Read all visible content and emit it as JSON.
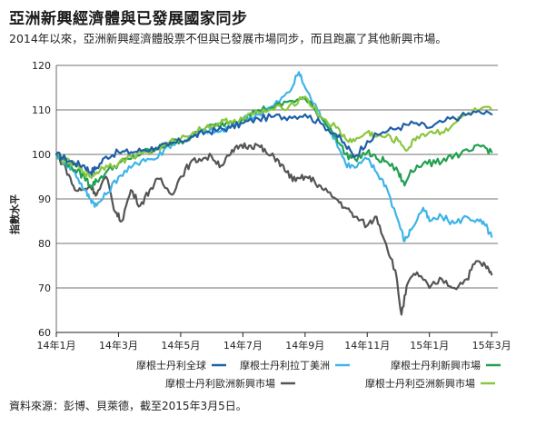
{
  "header": {
    "title": "亞洲新興經濟體與已發展國家同步",
    "subtitle": "2014年以來，亞洲新興經濟體股票不但與已發展市場同步，而且跑贏了其他新興市場。"
  },
  "footer": {
    "source": "資料來源：彭博、貝萊德，截至2015年3月5日。"
  },
  "chart_data": {
    "type": "line",
    "xlabel": "",
    "ylabel": "指數水平",
    "ylim": [
      60,
      120
    ],
    "yticks": [
      60,
      70,
      80,
      90,
      100,
      110,
      120
    ],
    "xticks": [
      "14年1月",
      "14年3月",
      "14年5月",
      "14年7月",
      "14年9月",
      "14年11月",
      "15年1月",
      "15年3月"
    ],
    "xticks_pos": [
      0,
      2,
      4,
      6,
      8,
      10,
      12,
      14
    ],
    "xlim": [
      0,
      14.2
    ],
    "grid": "horizontal",
    "legend_position": "bottom",
    "series": [
      {
        "name": "摩根士丹利全球",
        "color": "#1f5fa8",
        "points": [
          [
            0,
            100
          ],
          [
            0.3,
            99
          ],
          [
            0.6,
            98
          ],
          [
            0.9,
            97.5
          ],
          [
            1.1,
            96
          ],
          [
            1.3,
            97
          ],
          [
            1.6,
            99.5
          ],
          [
            2,
            100.5
          ],
          [
            2.4,
            100.5
          ],
          [
            2.8,
            101
          ],
          [
            3.2,
            101.5
          ],
          [
            3.6,
            102
          ],
          [
            4,
            103
          ],
          [
            4.4,
            104
          ],
          [
            4.8,
            105
          ],
          [
            5.2,
            105.5
          ],
          [
            5.6,
            106
          ],
          [
            6,
            107
          ],
          [
            6.5,
            108
          ],
          [
            7,
            108.5
          ],
          [
            7.5,
            108.5
          ],
          [
            8,
            109
          ],
          [
            8.5,
            107
          ],
          [
            9,
            104.5
          ],
          [
            9.3,
            102
          ],
          [
            9.6,
            99.5
          ],
          [
            10,
            103
          ],
          [
            10.5,
            105
          ],
          [
            11,
            106
          ],
          [
            11.5,
            107
          ],
          [
            12,
            106
          ],
          [
            12.5,
            107.5
          ],
          [
            13,
            108.5
          ],
          [
            13.5,
            109.5
          ],
          [
            14,
            109
          ]
        ]
      },
      {
        "name": "摩根士丹利拉丁美洲",
        "color": "#3fb4e8",
        "points": [
          [
            0,
            100
          ],
          [
            0.3,
            98
          ],
          [
            0.6,
            96
          ],
          [
            0.9,
            92
          ],
          [
            1.1,
            90
          ],
          [
            1.3,
            88.5
          ],
          [
            1.6,
            91
          ],
          [
            2,
            95
          ],
          [
            2.4,
            97
          ],
          [
            2.8,
            99
          ],
          [
            3.2,
            99
          ],
          [
            3.6,
            102
          ],
          [
            4,
            103
          ],
          [
            4.4,
            104
          ],
          [
            4.8,
            105.5
          ],
          [
            5.2,
            105
          ],
          [
            5.6,
            106
          ],
          [
            6,
            108
          ],
          [
            6.5,
            109
          ],
          [
            7,
            111
          ],
          [
            7.5,
            114
          ],
          [
            7.8,
            118.5
          ],
          [
            8,
            115
          ],
          [
            8.4,
            110
          ],
          [
            8.7,
            107
          ],
          [
            9,
            103
          ],
          [
            9.3,
            98
          ],
          [
            9.6,
            97
          ],
          [
            10,
            99
          ],
          [
            10.3,
            96
          ],
          [
            10.6,
            93
          ],
          [
            11,
            85
          ],
          [
            11.2,
            80.5
          ],
          [
            11.4,
            83
          ],
          [
            11.8,
            88
          ],
          [
            12,
            85
          ],
          [
            12.4,
            86
          ],
          [
            12.8,
            84.5
          ],
          [
            13.2,
            86
          ],
          [
            13.6,
            85
          ],
          [
            13.8,
            84
          ],
          [
            14,
            81.5
          ]
        ]
      },
      {
        "name": "摩根士丹利新興市場",
        "color": "#21a050",
        "points": [
          [
            0,
            100
          ],
          [
            0.3,
            98.5
          ],
          [
            0.6,
            96.5
          ],
          [
            0.9,
            95
          ],
          [
            1.1,
            93
          ],
          [
            1.3,
            94
          ],
          [
            1.6,
            96
          ],
          [
            2,
            98
          ],
          [
            2.4,
            99
          ],
          [
            2.8,
            100.5
          ],
          [
            3.2,
            101
          ],
          [
            3.6,
            102.5
          ],
          [
            4,
            103
          ],
          [
            4.4,
            104
          ],
          [
            4.8,
            106
          ],
          [
            5.2,
            106.5
          ],
          [
            5.6,
            107.5
          ],
          [
            6,
            108
          ],
          [
            6.5,
            110
          ],
          [
            7,
            110.5
          ],
          [
            7.5,
            112
          ],
          [
            8,
            112.5
          ],
          [
            8.5,
            108.5
          ],
          [
            9,
            104
          ],
          [
            9.3,
            100
          ],
          [
            9.6,
            99
          ],
          [
            10,
            100.5
          ],
          [
            10.3,
            99
          ],
          [
            10.6,
            98.5
          ],
          [
            11,
            96
          ],
          [
            11.2,
            93
          ],
          [
            11.4,
            96.5
          ],
          [
            11.8,
            98
          ],
          [
            12.2,
            98
          ],
          [
            12.6,
            99.5
          ],
          [
            13,
            100
          ],
          [
            13.4,
            101
          ],
          [
            13.7,
            102
          ],
          [
            14,
            100.5
          ]
        ]
      },
      {
        "name": "摩根士丹利歐洲新興市場",
        "color": "#555555",
        "points": [
          [
            0,
            100
          ],
          [
            0.3,
            97
          ],
          [
            0.6,
            92
          ],
          [
            0.9,
            92
          ],
          [
            1.1,
            93
          ],
          [
            1.3,
            91
          ],
          [
            1.6,
            95
          ],
          [
            1.9,
            87
          ],
          [
            2.1,
            85
          ],
          [
            2.4,
            92
          ],
          [
            2.7,
            88.5
          ],
          [
            3,
            92
          ],
          [
            3.3,
            94.5
          ],
          [
            3.7,
            91
          ],
          [
            4,
            95
          ],
          [
            4.3,
            98
          ],
          [
            4.6,
            99
          ],
          [
            5,
            99.5
          ],
          [
            5.3,
            97.5
          ],
          [
            5.6,
            100
          ],
          [
            5.9,
            102
          ],
          [
            6.2,
            102
          ],
          [
            6.5,
            102
          ],
          [
            6.8,
            100
          ],
          [
            7.1,
            99
          ],
          [
            7.4,
            96
          ],
          [
            7.7,
            94
          ],
          [
            8,
            95
          ],
          [
            8.3,
            94
          ],
          [
            8.6,
            92
          ],
          [
            9,
            90
          ],
          [
            9.3,
            88
          ],
          [
            9.6,
            86
          ],
          [
            10,
            84
          ],
          [
            10.3,
            86
          ],
          [
            10.6,
            80
          ],
          [
            10.9,
            74
          ],
          [
            11.1,
            64
          ],
          [
            11.3,
            71
          ],
          [
            11.6,
            73.5
          ],
          [
            12,
            70
          ],
          [
            12.4,
            72
          ],
          [
            12.8,
            70
          ],
          [
            13.2,
            72
          ],
          [
            13.5,
            76
          ],
          [
            13.8,
            75
          ],
          [
            14,
            73
          ]
        ]
      },
      {
        "name": "摩根士丹利亞洲新興市場",
        "color": "#8cc63f",
        "points": [
          [
            0,
            100
          ],
          [
            0.3,
            98.5
          ],
          [
            0.6,
            97.5
          ],
          [
            0.9,
            96
          ],
          [
            1.1,
            95
          ],
          [
            1.3,
            96
          ],
          [
            1.6,
            97.5
          ],
          [
            2,
            98
          ],
          [
            2.4,
            99.5
          ],
          [
            2.8,
            100.5
          ],
          [
            3.2,
            101
          ],
          [
            3.6,
            102.5
          ],
          [
            4,
            103.5
          ],
          [
            4.4,
            105
          ],
          [
            4.8,
            106
          ],
          [
            5.2,
            107
          ],
          [
            5.6,
            107.5
          ],
          [
            6,
            108
          ],
          [
            6.5,
            109.5
          ],
          [
            7,
            110
          ],
          [
            7.5,
            111
          ],
          [
            8,
            113
          ],
          [
            8.5,
            108.5
          ],
          [
            9,
            106
          ],
          [
            9.3,
            103.5
          ],
          [
            9.6,
            103
          ],
          [
            10,
            105
          ],
          [
            10.3,
            104
          ],
          [
            10.6,
            104
          ],
          [
            11,
            103
          ],
          [
            11.3,
            101
          ],
          [
            11.6,
            104
          ],
          [
            12,
            105
          ],
          [
            12.4,
            105
          ],
          [
            12.8,
            107
          ],
          [
            13.2,
            109
          ],
          [
            13.6,
            110
          ],
          [
            14,
            110
          ]
        ]
      }
    ]
  }
}
